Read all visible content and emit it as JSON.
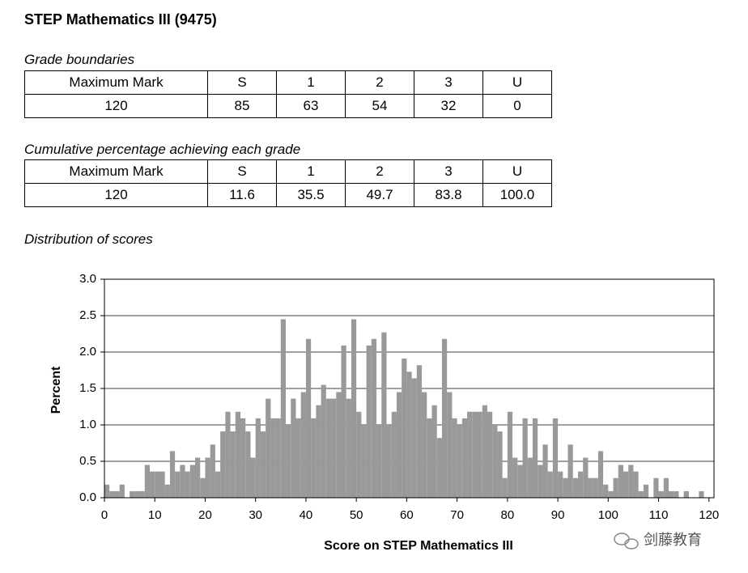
{
  "title": "STEP Mathematics III (9475)",
  "tables": [
    {
      "caption": "Grade boundaries",
      "header": [
        "Maximum Mark",
        "S",
        "1",
        "2",
        "3",
        "U"
      ],
      "rows": [
        [
          "120",
          "85",
          "63",
          "54",
          "32",
          "0"
        ]
      ]
    },
    {
      "caption": "Cumulative percentage achieving each grade",
      "header": [
        "Maximum Mark",
        "S",
        "1",
        "2",
        "3",
        "U"
      ],
      "rows": [
        [
          "120",
          "11.6",
          "35.5",
          "49.7",
          "83.8",
          "100.0"
        ]
      ]
    }
  ],
  "chart_data": {
    "type": "histogram",
    "title": "Distribution of scores",
    "x_label": "Score on STEP Mathematics III",
    "y_label": "Percent",
    "bins": [
      0,
      1,
      2,
      3,
      4,
      5,
      6,
      7,
      8,
      9,
      10,
      11,
      12,
      13,
      14,
      15,
      16,
      17,
      18,
      19,
      20,
      21,
      22,
      23,
      24,
      25,
      26,
      27,
      28,
      29,
      30,
      31,
      32,
      33,
      34,
      35,
      36,
      37,
      38,
      39,
      40,
      41,
      42,
      43,
      44,
      45,
      46,
      47,
      48,
      49,
      50,
      51,
      52,
      53,
      54,
      55,
      56,
      57,
      58,
      59,
      60,
      61,
      62,
      63,
      64,
      65,
      66,
      67,
      68,
      69,
      70,
      71,
      72,
      73,
      74,
      75,
      76,
      77,
      78,
      79,
      80,
      81,
      82,
      83,
      84,
      85,
      86,
      87,
      88,
      89,
      90,
      91,
      92,
      93,
      94,
      95,
      96,
      97,
      98,
      99,
      100,
      101,
      102,
      103,
      104,
      105,
      106,
      107,
      108,
      109,
      110,
      111,
      112,
      113,
      114,
      115,
      116,
      117,
      118,
      119,
      120,
      121
    ],
    "values": [
      0.18,
      0.09,
      0.09,
      0.18,
      0.0,
      0.09,
      0.09,
      0.09,
      0.45,
      0.36,
      0.36,
      0.36,
      0.18,
      0.64,
      0.36,
      0.45,
      0.36,
      0.45,
      0.55,
      0.27,
      0.55,
      0.73,
      0.36,
      0.91,
      1.18,
      0.91,
      1.18,
      1.09,
      0.91,
      0.55,
      1.09,
      0.91,
      1.36,
      1.09,
      1.09,
      2.45,
      1.0,
      1.36,
      1.09,
      1.45,
      2.18,
      1.09,
      1.27,
      1.55,
      1.36,
      1.36,
      1.45,
      2.09,
      1.36,
      2.45,
      1.18,
      1.0,
      2.09,
      2.18,
      1.0,
      2.27,
      1.0,
      1.18,
      1.45,
      1.91,
      1.73,
      1.64,
      1.82,
      1.45,
      1.09,
      1.27,
      0.82,
      2.18,
      1.45,
      1.09,
      1.0,
      1.09,
      1.18,
      1.18,
      1.18,
      1.27,
      1.18,
      1.0,
      0.91,
      0.27,
      1.18,
      0.55,
      0.45,
      1.09,
      0.55,
      1.09,
      0.45,
      0.73,
      0.36,
      1.09,
      0.36,
      0.27,
      0.73,
      0.27,
      0.36,
      0.55,
      0.27,
      0.27,
      0.64,
      0.18,
      0.09,
      0.27,
      0.45,
      0.36,
      0.45,
      0.36,
      0.09,
      0.18,
      0.0,
      0.27,
      0.09,
      0.27,
      0.09,
      0.09,
      0.0,
      0.09,
      0.0,
      0.0,
      0.09,
      0.0,
      0.0
    ],
    "color": "#999999",
    "grid": true,
    "xlim": [
      0,
      121
    ],
    "ylim": [
      0,
      3
    ],
    "xticks": [
      0,
      10,
      20,
      30,
      40,
      50,
      60,
      70,
      80,
      90,
      100,
      110,
      120
    ],
    "yticks": [
      {
        "value": 0,
        "label": "0.0"
      },
      0.5,
      {
        "value": 1,
        "label": "1.0"
      },
      1.5,
      {
        "value": 2,
        "label": "2.0"
      },
      2.5,
      {
        "value": 3,
        "label": "3.0"
      }
    ]
  },
  "watermark": "剑藤教育"
}
